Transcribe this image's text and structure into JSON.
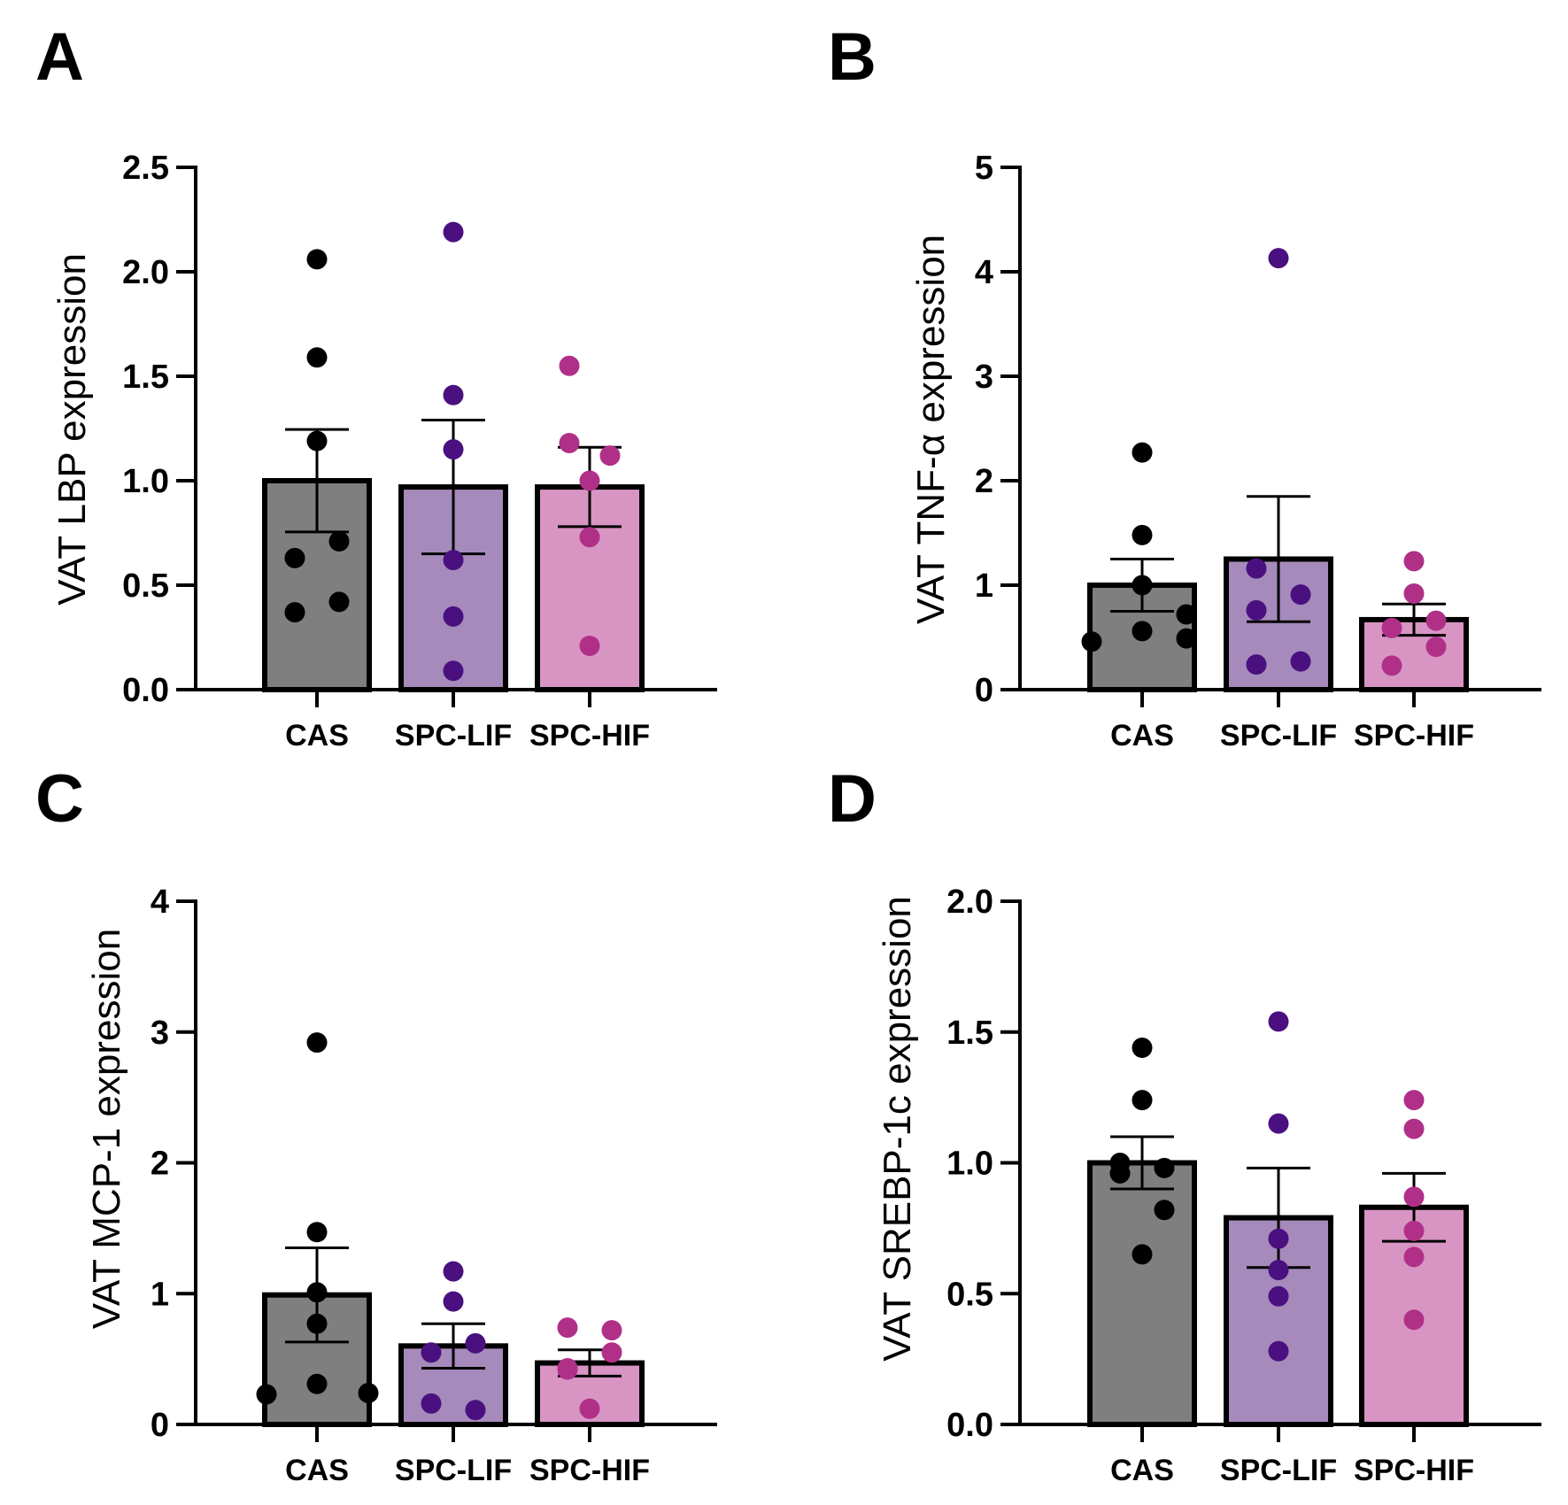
{
  "colors": {
    "CAS": {
      "fill": "#7f7f7f",
      "dot": "#000000"
    },
    "SPC-LIF": {
      "fill": "#a58abb",
      "dot": "#4a1080"
    },
    "SPC-HIF": {
      "fill": "#d895c4",
      "dot": "#b03088"
    }
  },
  "chart_data": [
    {
      "panel": "A",
      "type": "bar",
      "ylabel": "VAT LBP expression",
      "ylim": [
        0,
        2.5
      ],
      "yticks": [
        "0.0",
        "0.5",
        "1.0",
        "1.5",
        "2.0",
        "2.5"
      ],
      "categories": [
        "CAS",
        "SPC-LIF",
        "SPC-HIF"
      ],
      "means": [
        1.0,
        0.97,
        0.97
      ],
      "sem": [
        0.245,
        0.32,
        0.19
      ],
      "points": [
        [
          2.06,
          1.59,
          1.19,
          0.63,
          0.71,
          0.37,
          0.42
        ],
        [
          2.19,
          1.41,
          1.15,
          0.62,
          0.35,
          0.09
        ],
        [
          1.55,
          1.18,
          1.12,
          1.0,
          0.73,
          0.21
        ]
      ]
    },
    {
      "panel": "B",
      "type": "bar",
      "ylabel": "VAT TNF-α expression",
      "ylim": [
        0,
        5
      ],
      "yticks": [
        "0",
        "1",
        "2",
        "3",
        "4",
        "5"
      ],
      "categories": [
        "CAS",
        "SPC-LIF",
        "SPC-HIF"
      ],
      "means": [
        1.0,
        1.25,
        0.67
      ],
      "sem": [
        0.25,
        0.6,
        0.15
      ],
      "points": [
        [
          2.27,
          1.48,
          1.0,
          0.72,
          0.56,
          0.49,
          0.46
        ],
        [
          4.13,
          1.16,
          0.91,
          0.76,
          0.27,
          0.24
        ],
        [
          1.23,
          0.92,
          0.66,
          0.59,
          0.41,
          0.23
        ]
      ]
    },
    {
      "panel": "C",
      "type": "bar",
      "ylabel": "VAT MCP-1 expression",
      "ylim": [
        0,
        4
      ],
      "yticks": [
        "0",
        "1",
        "2",
        "3",
        "4"
      ],
      "categories": [
        "CAS",
        "SPC-LIF",
        "SPC-HIF"
      ],
      "means": [
        0.99,
        0.6,
        0.47
      ],
      "sem": [
        0.36,
        0.17,
        0.1
      ],
      "points": [
        [
          2.92,
          1.47,
          1.01,
          0.77,
          0.31,
          0.24,
          0.23
        ],
        [
          1.17,
          0.94,
          0.62,
          0.55,
          0.16,
          0.11
        ],
        [
          0.74,
          0.72,
          0.55,
          0.42,
          0.43,
          0.12
        ]
      ]
    },
    {
      "panel": "D",
      "type": "bar",
      "ylabel": "VAT SREBP-1c expression",
      "ylim": [
        0,
        2.0
      ],
      "yticks": [
        "0.0",
        "0.5",
        "1.0",
        "1.5",
        "2.0"
      ],
      "categories": [
        "CAS",
        "SPC-LIF",
        "SPC-HIF"
      ],
      "means": [
        1.0,
        0.79,
        0.83
      ],
      "sem": [
        0.1,
        0.19,
        0.13
      ],
      "points": [
        [
          1.44,
          1.24,
          1.0,
          0.98,
          0.96,
          0.82,
          0.65
        ],
        [
          1.54,
          1.15,
          0.71,
          0.59,
          0.49,
          0.28
        ],
        [
          1.24,
          1.13,
          0.87,
          0.74,
          0.64,
          0.4
        ]
      ]
    }
  ]
}
